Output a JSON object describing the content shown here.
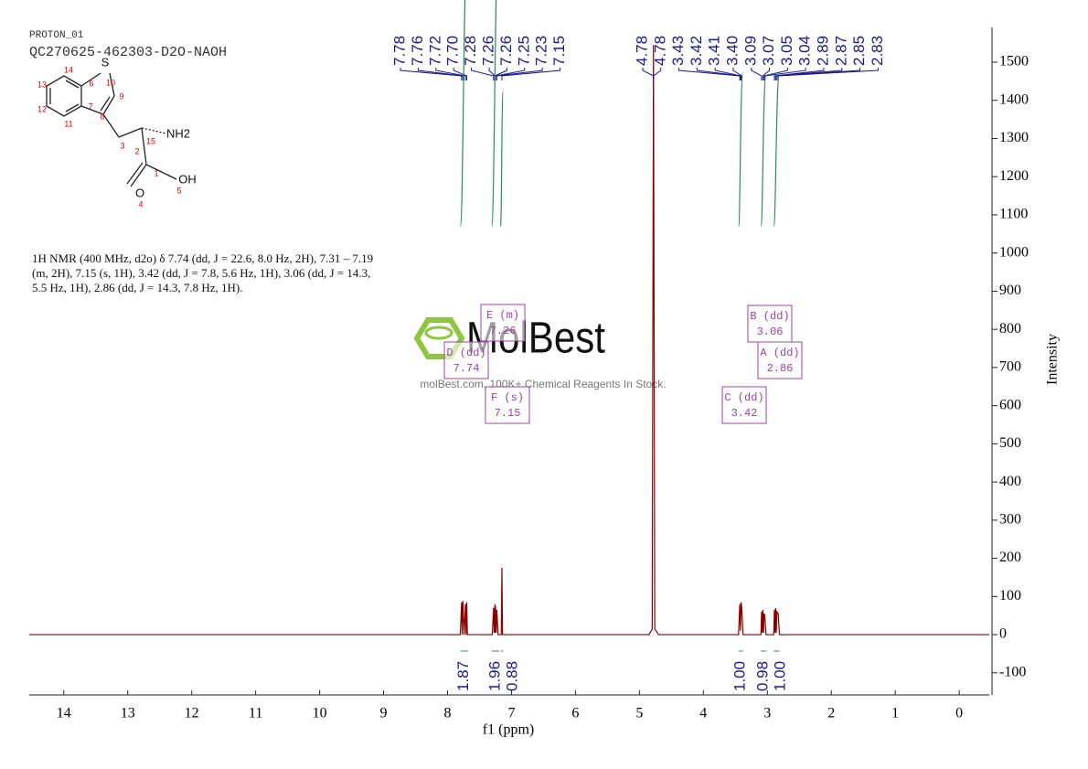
{
  "header": {
    "run": "PROTON_01",
    "sample": "QC270625-462303-D2O-NAOH"
  },
  "structure": {
    "atoms": [
      "S",
      "NH2",
      "OH",
      "O"
    ],
    "numbers": [
      "14",
      "13",
      "12",
      "11",
      "6",
      "7",
      "10",
      "9",
      "8",
      "3",
      "2",
      "15",
      "1",
      "4",
      "5"
    ]
  },
  "description": [
    "1H NMR (400 MHz, d2o) δ 7.74 (dd, J = 22.6, 8.0 Hz, 2H), 7.31 – 7.19",
    "(m, 2H), 7.15 (s, 1H), 3.42 (dd, J = 7.8, 5.6 Hz, 1H), 3.06 (dd, J = 14.3,",
    "5.5 Hz, 1H), 2.86 (dd, J = 14.3, 7.8 Hz, 1H)."
  ],
  "watermark": {
    "brand": "MolBest",
    "tagline": "molBest.com, 100K+ Chemical Reagents In Stock."
  },
  "chart_data": {
    "type": "line",
    "xlabel": "f1 (ppm)",
    "ylabel": "Intensity",
    "color": "#8b0000",
    "x": [
      14.54,
      7.8,
      7.78,
      7.77,
      7.76,
      7.74,
      7.72,
      7.71,
      7.7,
      7.69,
      7.3,
      7.28,
      7.27,
      7.26,
      7.255,
      7.25,
      7.24,
      7.23,
      7.21,
      7.16,
      7.15,
      7.14,
      4.85,
      4.8,
      4.78,
      4.76,
      4.7,
      3.45,
      3.43,
      3.42,
      3.41,
      3.4,
      3.38,
      3.1,
      3.09,
      3.08,
      3.07,
      3.06,
      3.05,
      3.04,
      3.02,
      2.9,
      2.89,
      2.88,
      2.87,
      2.86,
      2.85,
      2.83,
      2.81,
      -0.47
    ],
    "values": [
      0,
      0,
      85,
      0,
      88,
      0,
      80,
      0,
      85,
      0,
      0,
      70,
      5,
      80,
      5,
      75,
      5,
      65,
      0,
      0,
      175,
      0,
      0,
      15,
      1545,
      15,
      0,
      0,
      80,
      10,
      85,
      70,
      0,
      0,
      60,
      5,
      65,
      5,
      55,
      50,
      0,
      0,
      65,
      5,
      70,
      5,
      60,
      55,
      0,
      0
    ],
    "xlim": [
      14.54,
      -0.47
    ],
    "xticks": [
      14,
      13,
      12,
      11,
      10,
      9,
      8,
      7,
      6,
      5,
      4,
      3,
      2,
      1,
      0
    ],
    "ylim": [
      -158,
      1591
    ],
    "yticks": [
      -100,
      0,
      100,
      200,
      300,
      400,
      500,
      600,
      700,
      800,
      900,
      1000,
      1100,
      1200,
      1300,
      1400,
      1500
    ],
    "peak_labels": [
      "7.78",
      "7.76",
      "7.72",
      "7.70",
      "7.28",
      "7.26",
      "7.26",
      "7.25",
      "7.23",
      "7.15",
      "4.78",
      "4.78",
      "3.43",
      "3.42",
      "3.41",
      "3.40",
      "3.09",
      "3.07",
      "3.05",
      "3.04",
      "2.89",
      "2.87",
      "2.85",
      "2.83"
    ],
    "peak_label_color": "#1a1a8c",
    "integrals": {
      "ranges": [
        [
          7.8,
          7.68
        ],
        [
          7.31,
          7.19
        ],
        [
          7.17,
          7.13
        ],
        [
          3.45,
          3.38
        ],
        [
          3.1,
          3.02
        ],
        [
          2.9,
          2.81
        ]
      ],
      "values": [
        1.87,
        1.96,
        0.88,
        1,
        0.98,
        1
      ],
      "value_labels": [
        "1.87",
        "1.96",
        "0.88",
        "1.00",
        "0.98",
        "1.00"
      ],
      "color": "#2e8b57"
    },
    "multiplets": [
      {
        "label": "E (m)",
        "shift": "7.26"
      },
      {
        "label": "D (dd)",
        "shift": "7.74"
      },
      {
        "label": "F (s)",
        "shift": "7.15"
      },
      {
        "label": "B (dd)",
        "shift": "3.06"
      },
      {
        "label": "A (dd)",
        "shift": "2.86"
      },
      {
        "label": "C (dd)",
        "shift": "3.42"
      }
    ],
    "multiplet_color": "#a040a0"
  }
}
